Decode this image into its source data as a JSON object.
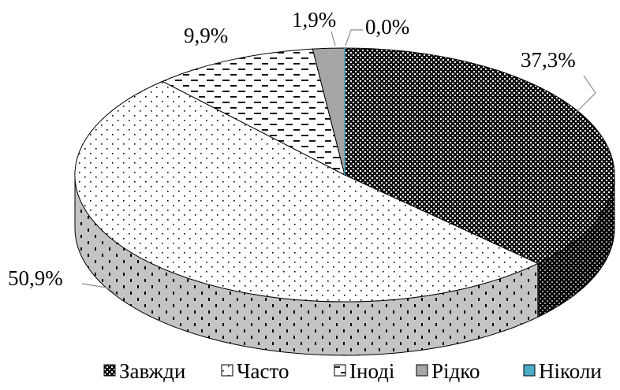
{
  "chart_data": {
    "type": "pie",
    "style": "3d",
    "title": "",
    "categories": [
      "Завжди",
      "Часто",
      "Іноді",
      "Рідко",
      "Ніколи"
    ],
    "values": [
      37.3,
      50.9,
      9.9,
      1.9,
      0.0
    ],
    "labels": [
      "37,3%",
      "50,9%",
      "9,9%",
      "1,9%",
      "0,0%"
    ],
    "legend_position": "bottom",
    "colors": {
      "Завжди": "#1a1a1a",
      "Часто": "#ffffff",
      "Іноді": "#ffffff",
      "Рідко": "#a6a6a6",
      "Ніколи": "#4bacc6"
    },
    "patterns": [
      "dark-checker",
      "dots",
      "dashes",
      "solid",
      "solid"
    ]
  }
}
